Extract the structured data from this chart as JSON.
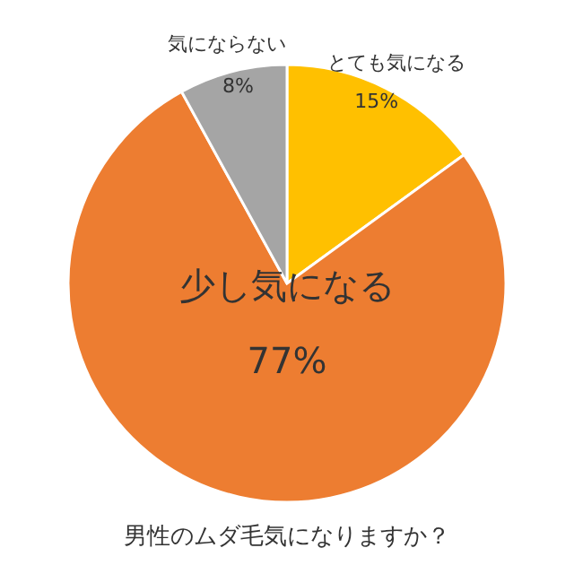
{
  "chart_data": {
    "type": "pie",
    "title": "男性のムダ毛気になりますか？",
    "categories": [
      "とても気になる",
      "少し気になる",
      "気にならない"
    ],
    "values": [
      15,
      77,
      8
    ],
    "colors": [
      "#ffc000",
      "#ed7d31",
      "#a5a5a5"
    ],
    "value_labels": [
      "15%",
      "77%",
      "8%"
    ]
  }
}
